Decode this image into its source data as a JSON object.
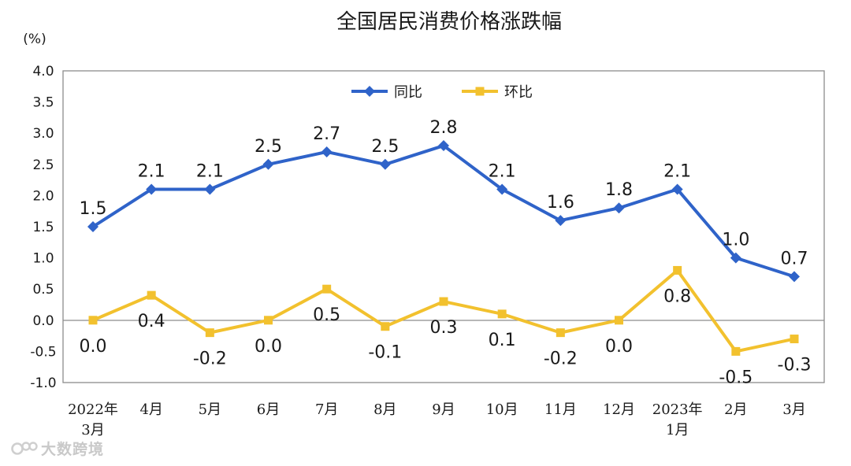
{
  "chart_data": {
    "type": "line",
    "title": "全国居民消费价格涨跌幅",
    "unit_label": "(%)",
    "categories": [
      [
        "2022年",
        "3月"
      ],
      [
        "4月"
      ],
      [
        "5月"
      ],
      [
        "6月"
      ],
      [
        "7月"
      ],
      [
        "8月"
      ],
      [
        "9月"
      ],
      [
        "10月"
      ],
      [
        "11月"
      ],
      [
        "12月"
      ],
      [
        "2023年",
        "1月"
      ],
      [
        "2月"
      ],
      [
        "3月"
      ]
    ],
    "ylim": [
      -1.0,
      4.0
    ],
    "yticks": [
      "4.0",
      "3.5",
      "3.0",
      "2.5",
      "2.0",
      "1.5",
      "1.0",
      "0.5",
      "0.0",
      "-0.5",
      "-1.0"
    ],
    "grid": false,
    "legend_position": "top-center",
    "series": [
      {
        "name": "同比",
        "color": "#2f63c9",
        "marker": "diamond",
        "label_position": "above",
        "values": [
          1.5,
          2.1,
          2.1,
          2.5,
          2.7,
          2.5,
          2.8,
          2.1,
          1.6,
          1.8,
          2.1,
          1.0,
          0.7
        ],
        "labels": [
          "1.5",
          "2.1",
          "2.1",
          "2.5",
          "2.7",
          "2.5",
          "2.8",
          "2.1",
          "1.6",
          "1.8",
          "2.1",
          "1.0",
          "0.7"
        ]
      },
      {
        "name": "环比",
        "color": "#f2c12e",
        "marker": "square",
        "label_position": "below",
        "values": [
          0.0,
          0.4,
          -0.2,
          0.0,
          0.5,
          -0.1,
          0.3,
          0.1,
          -0.2,
          0.0,
          0.8,
          -0.5,
          -0.3
        ],
        "labels": [
          "0.0",
          "0.4",
          "-0.2",
          "0.0",
          "0.5",
          "-0.1",
          "0.3",
          "0.1",
          "-0.2",
          "0.0",
          "0.8",
          "-0.5",
          "-0.3"
        ]
      }
    ]
  },
  "watermark": {
    "text": "大数跨境",
    "icon": "brand-logo-icon"
  }
}
